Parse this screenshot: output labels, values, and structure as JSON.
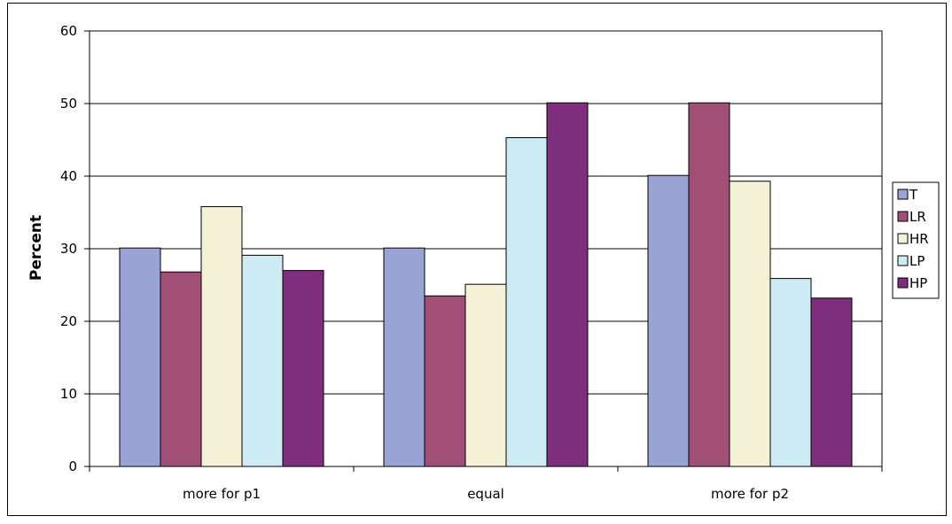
{
  "chart_data": {
    "type": "bar",
    "title": "",
    "xlabel": "",
    "ylabel": "Percent",
    "categories": [
      "more for p1",
      "equal",
      "more for p2"
    ],
    "ylim": [
      0,
      60
    ],
    "yticks": [
      0,
      10,
      20,
      30,
      40,
      50,
      60
    ],
    "grid": true,
    "legend_position": "right",
    "series": [
      {
        "name": "T",
        "color": "#9aa3d6",
        "values": [
          30.1,
          30.1,
          40.1
        ]
      },
      {
        "name": "LR",
        "color": "#a24f78",
        "values": [
          26.8,
          23.5,
          50.1
        ]
      },
      {
        "name": "HR",
        "color": "#f4f2d6",
        "values": [
          35.8,
          25.1,
          39.3
        ]
      },
      {
        "name": "LP",
        "color": "#cdebf5",
        "values": [
          29.1,
          45.3,
          25.9
        ]
      },
      {
        "name": "HP",
        "color": "#7f2e7d",
        "values": [
          27.0,
          50.1,
          23.2
        ]
      }
    ]
  }
}
